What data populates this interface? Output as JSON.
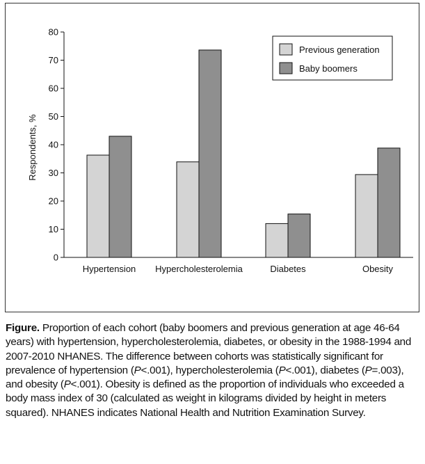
{
  "chart_data": {
    "type": "bar",
    "categories": [
      "Hypertension",
      "Hypercholesterolemia",
      "Diabetes",
      "Obesity"
    ],
    "series": [
      {
        "name": "Previous generation",
        "values": [
          36.3,
          33.9,
          12.0,
          29.4
        ],
        "color": "#d4d4d4"
      },
      {
        "name": "Baby boomers",
        "values": [
          43.0,
          73.6,
          15.4,
          38.8
        ],
        "color": "#8f8f8f"
      }
    ],
    "ylabel": "Respondents, %",
    "ylim": [
      0,
      80
    ],
    "yticks": [
      0,
      10,
      20,
      30,
      40,
      50,
      60,
      70,
      80
    ],
    "legend_position": "top-right",
    "grid": false
  },
  "caption": {
    "label": "Figure.",
    "segments": [
      {
        "t": " Proportion of each cohort (baby boomers and previous generation at age 46-64 years) with hypertension, hypercholesterolemia, diabetes, or obesity in the 1988-1994 and 2007-2010 NHANES. The difference between cohorts was statistically significant for prevalence of hypertension (",
        "i": false
      },
      {
        "t": "P",
        "i": true
      },
      {
        "t": "<.001), hypercholesterolemia (",
        "i": false
      },
      {
        "t": "P",
        "i": true
      },
      {
        "t": "<.001), diabetes (",
        "i": false
      },
      {
        "t": "P",
        "i": true
      },
      {
        "t": "=.003), and obesity (",
        "i": false
      },
      {
        "t": "P",
        "i": true
      },
      {
        "t": "<.001). Obesity is defined as the proportion of individuals who exceeded a body mass index of 30 (calculated as weight in kilograms divided by height in meters squared). NHANES indicates National Health and Nutrition Examination Survey.",
        "i": false
      }
    ]
  }
}
